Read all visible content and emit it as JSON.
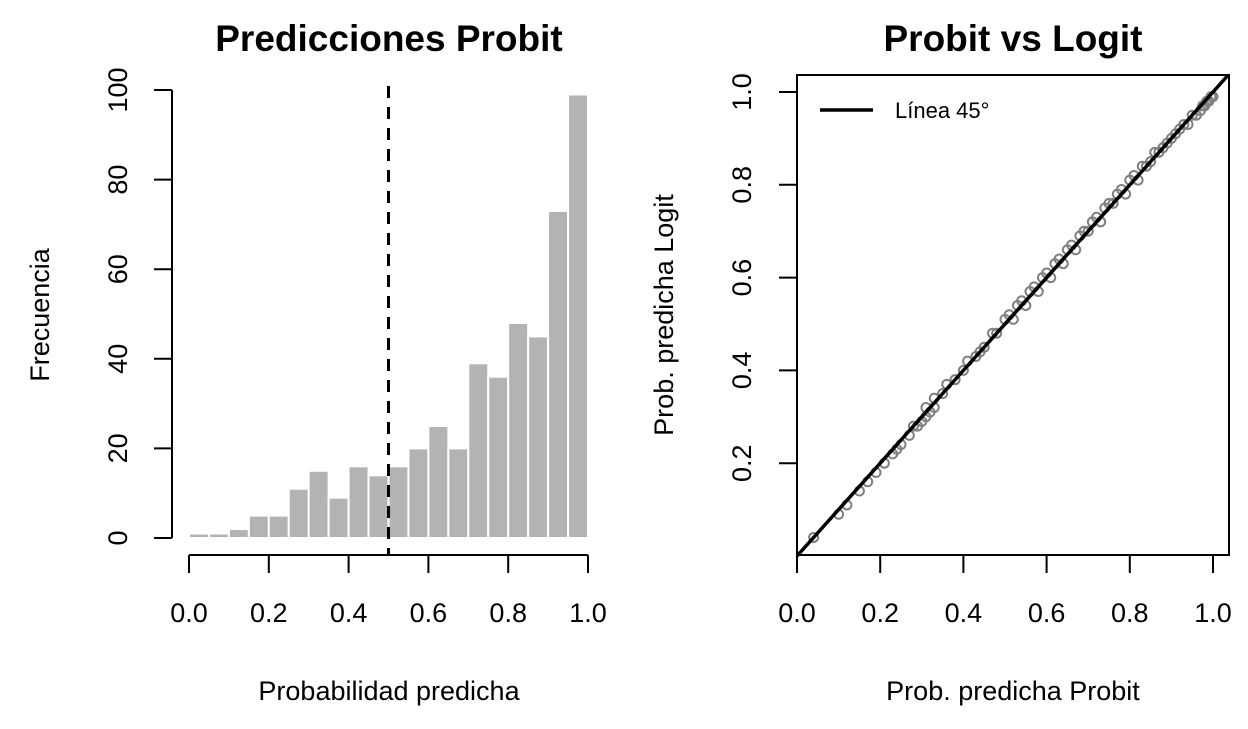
{
  "chart_data": [
    {
      "type": "bar",
      "title": "Predicciones Probit",
      "xlabel": "Probabilidad predicha",
      "ylabel": "Frecuencia",
      "bin_edges": [
        0.0,
        0.05,
        0.1,
        0.15,
        0.2,
        0.25,
        0.3,
        0.35,
        0.4,
        0.45,
        0.5,
        0.55,
        0.6,
        0.65,
        0.7,
        0.75,
        0.8,
        0.85,
        0.9,
        0.95,
        1.0
      ],
      "values": [
        1,
        1,
        2,
        5,
        5,
        11,
        15,
        9,
        16,
        14,
        16,
        20,
        25,
        20,
        39,
        36,
        48,
        45,
        73,
        99
      ],
      "xlim": [
        0,
        1
      ],
      "ylim": [
        0,
        100
      ],
      "x_ticks": [
        "0.0",
        "0.2",
        "0.4",
        "0.6",
        "0.8",
        "1.0"
      ],
      "y_ticks": [
        "0",
        "20",
        "40",
        "60",
        "80",
        "100"
      ],
      "vline": {
        "x": 0.5,
        "style": "dashed"
      },
      "bar_color": "#b3b3b3"
    },
    {
      "type": "scatter",
      "title": "Probit vs Logit",
      "xlabel": "Prob. predicha Probit",
      "ylabel": "Prob. predicha Logit",
      "xlim": [
        0,
        1
      ],
      "ylim": [
        0,
        1
      ],
      "x_ticks": [
        "0.0",
        "0.2",
        "0.4",
        "0.6",
        "0.8",
        "1.0"
      ],
      "y_ticks": [
        "0.2",
        "0.4",
        "0.6",
        "0.8",
        "1.0"
      ],
      "points": {
        "x": [
          0.04,
          0.1,
          0.12,
          0.15,
          0.17,
          0.19,
          0.21,
          0.23,
          0.24,
          0.25,
          0.27,
          0.28,
          0.29,
          0.3,
          0.31,
          0.31,
          0.32,
          0.33,
          0.33,
          0.35,
          0.36,
          0.38,
          0.4,
          0.41,
          0.43,
          0.44,
          0.45,
          0.47,
          0.48,
          0.5,
          0.51,
          0.52,
          0.53,
          0.54,
          0.55,
          0.56,
          0.57,
          0.58,
          0.59,
          0.6,
          0.61,
          0.62,
          0.63,
          0.64,
          0.65,
          0.66,
          0.67,
          0.68,
          0.69,
          0.7,
          0.71,
          0.72,
          0.73,
          0.74,
          0.75,
          0.76,
          0.77,
          0.78,
          0.79,
          0.8,
          0.81,
          0.82,
          0.83,
          0.84,
          0.85,
          0.86,
          0.87,
          0.88,
          0.89,
          0.9,
          0.91,
          0.92,
          0.93,
          0.94,
          0.95,
          0.96,
          0.97,
          0.975,
          0.98,
          0.985,
          0.99,
          0.995,
          1.0
        ],
        "y": [
          0.04,
          0.09,
          0.11,
          0.14,
          0.16,
          0.18,
          0.2,
          0.22,
          0.23,
          0.24,
          0.26,
          0.28,
          0.28,
          0.29,
          0.3,
          0.32,
          0.31,
          0.32,
          0.34,
          0.35,
          0.37,
          0.38,
          0.4,
          0.42,
          0.43,
          0.44,
          0.45,
          0.48,
          0.48,
          0.51,
          0.52,
          0.51,
          0.54,
          0.55,
          0.54,
          0.57,
          0.58,
          0.57,
          0.6,
          0.61,
          0.6,
          0.63,
          0.64,
          0.63,
          0.66,
          0.67,
          0.66,
          0.69,
          0.7,
          0.7,
          0.72,
          0.73,
          0.72,
          0.75,
          0.76,
          0.76,
          0.78,
          0.79,
          0.78,
          0.81,
          0.82,
          0.81,
          0.84,
          0.84,
          0.85,
          0.87,
          0.87,
          0.88,
          0.89,
          0.9,
          0.91,
          0.92,
          0.93,
          0.93,
          0.95,
          0.95,
          0.96,
          0.97,
          0.97,
          0.98,
          0.98,
          0.99,
          0.99
        ]
      },
      "reference_line": {
        "slope": 1,
        "intercept": 0
      },
      "legend": {
        "label": "Línea 45°",
        "position": "top-left"
      },
      "point_color": "#808080"
    }
  ]
}
